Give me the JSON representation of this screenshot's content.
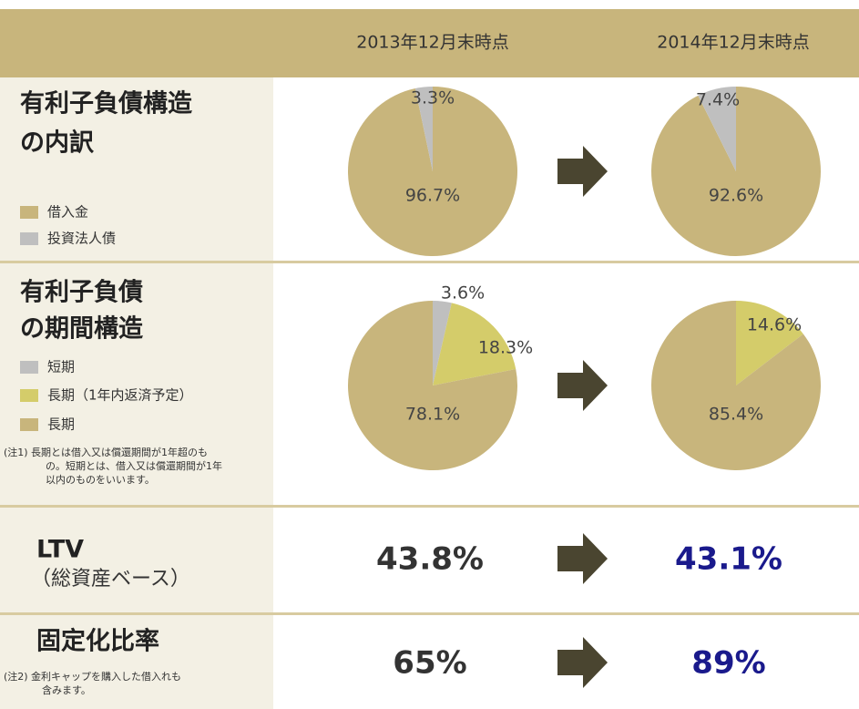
{
  "header": {
    "columns": [
      "2013年12月末時点",
      "2014年12月末時点"
    ]
  },
  "rows": [
    {
      "title": [
        "有利子負債構造",
        "の内訳"
      ],
      "legend": [
        {
          "name": "借入金",
          "color": "#c8b57c"
        },
        {
          "name": "投資法人債",
          "color": "#bfbfbf"
        }
      ],
      "pies": [
        {
          "values": [
            96.7,
            3.3
          ],
          "value_labels": [
            "96.7%",
            "3.3%"
          ]
        },
        {
          "values": [
            92.6,
            7.4
          ],
          "value_labels": [
            "92.6%",
            "7.4%"
          ]
        }
      ]
    },
    {
      "title": [
        "有利子負債",
        "の期間構造"
      ],
      "legend": [
        {
          "name": "短期",
          "color": "#bfbfbf"
        },
        {
          "name": "長期（1年内返済予定）",
          "color": "#d4cc6a"
        },
        {
          "name": "長期",
          "color": "#c8b57c"
        }
      ],
      "note_marker": "(注1)",
      "note": [
        "長期とは借入又は償還期間が1年超のも",
        "の。短期とは、借入又は償還期間が1年",
        "以内のものをいいます。"
      ],
      "pies": [
        {
          "values": [
            3.6,
            18.3,
            78.1
          ],
          "value_labels": [
            "3.6%",
            "18.3%",
            "78.1%"
          ]
        },
        {
          "values": [
            null,
            14.6,
            85.4
          ],
          "value_labels": [
            null,
            "14.6%",
            "85.4%"
          ]
        }
      ]
    },
    {
      "title": [
        "LTV"
      ],
      "subtitle": "（総資産ベース）",
      "values": [
        "43.8%",
        "43.1%"
      ]
    },
    {
      "title": [
        "固定化比率"
      ],
      "note_marker": "(注2)",
      "note": [
        "金利キャップを購入した借入れも",
        "含みます。"
      ],
      "values": [
        "65%",
        "89%"
      ]
    }
  ]
}
